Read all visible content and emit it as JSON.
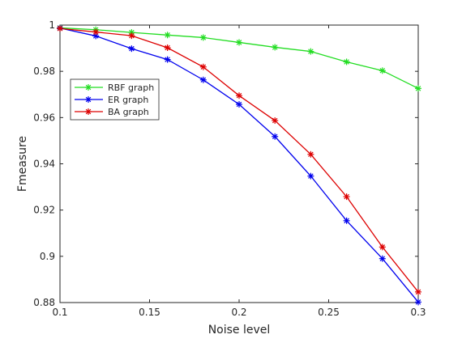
{
  "chart_data": {
    "type": "line",
    "title": "",
    "xlabel": "Noise level",
    "ylabel": "Fmeasure",
    "xlim": [
      0.1,
      0.3
    ],
    "ylim": [
      0.88,
      1.0
    ],
    "xticks": [
      0.1,
      0.15,
      0.2,
      0.25,
      0.3
    ],
    "xtick_labels": [
      "0.1",
      "0.15",
      "0.2",
      "0.25",
      "0.3"
    ],
    "yticks": [
      0.88,
      0.9,
      0.92,
      0.94,
      0.96,
      0.98,
      1.0
    ],
    "ytick_labels": [
      "0.88",
      "0.9",
      "0.92",
      "0.94",
      "0.96",
      "0.98",
      "1"
    ],
    "grid": false,
    "legend_position": "upper-left",
    "x": [
      0.1,
      0.12,
      0.14,
      0.16,
      0.18,
      0.2,
      0.22,
      0.24,
      0.26,
      0.28,
      0.3
    ],
    "series": [
      {
        "name": "RBF graph",
        "color": "#22dd22",
        "marker": "asterisk",
        "values": [
          0.9988,
          0.998,
          0.9968,
          0.9957,
          0.9946,
          0.9925,
          0.9904,
          0.9886,
          0.9841,
          0.9803,
          0.9726
        ]
      },
      {
        "name": "ER graph",
        "color": "#0000ee",
        "marker": "asterisk",
        "values": [
          0.9987,
          0.9953,
          0.9898,
          0.9851,
          0.9763,
          0.9657,
          0.9518,
          0.9347,
          0.9154,
          0.899,
          0.8802
        ]
      },
      {
        "name": "BA graph",
        "color": "#dd0000",
        "marker": "asterisk",
        "values": [
          0.9985,
          0.997,
          0.9954,
          0.9902,
          0.9819,
          0.9695,
          0.9587,
          0.9441,
          0.9258,
          0.904,
          0.8846
        ]
      }
    ]
  }
}
